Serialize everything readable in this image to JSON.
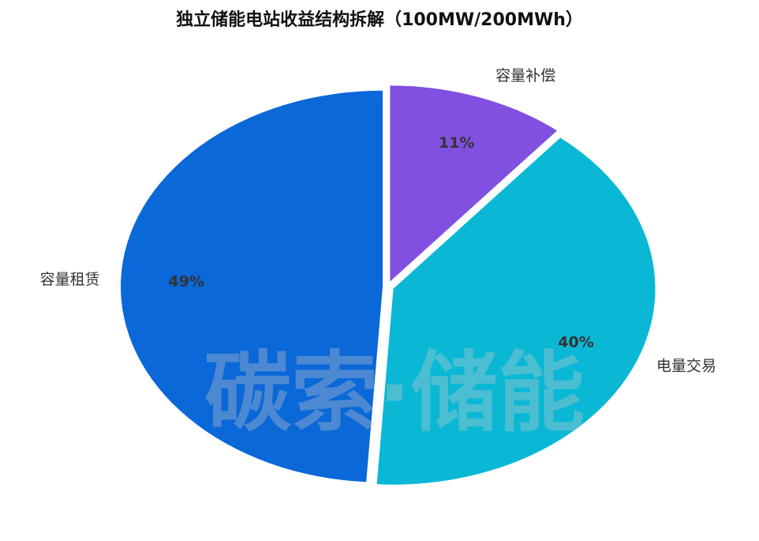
{
  "chart_data": {
    "type": "pie",
    "title": "独立储能电站收益结构拆解（100MW/200MWh）",
    "watermark": "碳索·储能",
    "categories": [
      "容量补偿",
      "电量交易",
      "容量租赁"
    ],
    "values": [
      11,
      40,
      49
    ],
    "value_labels": [
      "11%",
      "40%",
      "49%"
    ],
    "colors": [
      "#8150e0",
      "#0ab8d6",
      "#0a68d8"
    ]
  }
}
